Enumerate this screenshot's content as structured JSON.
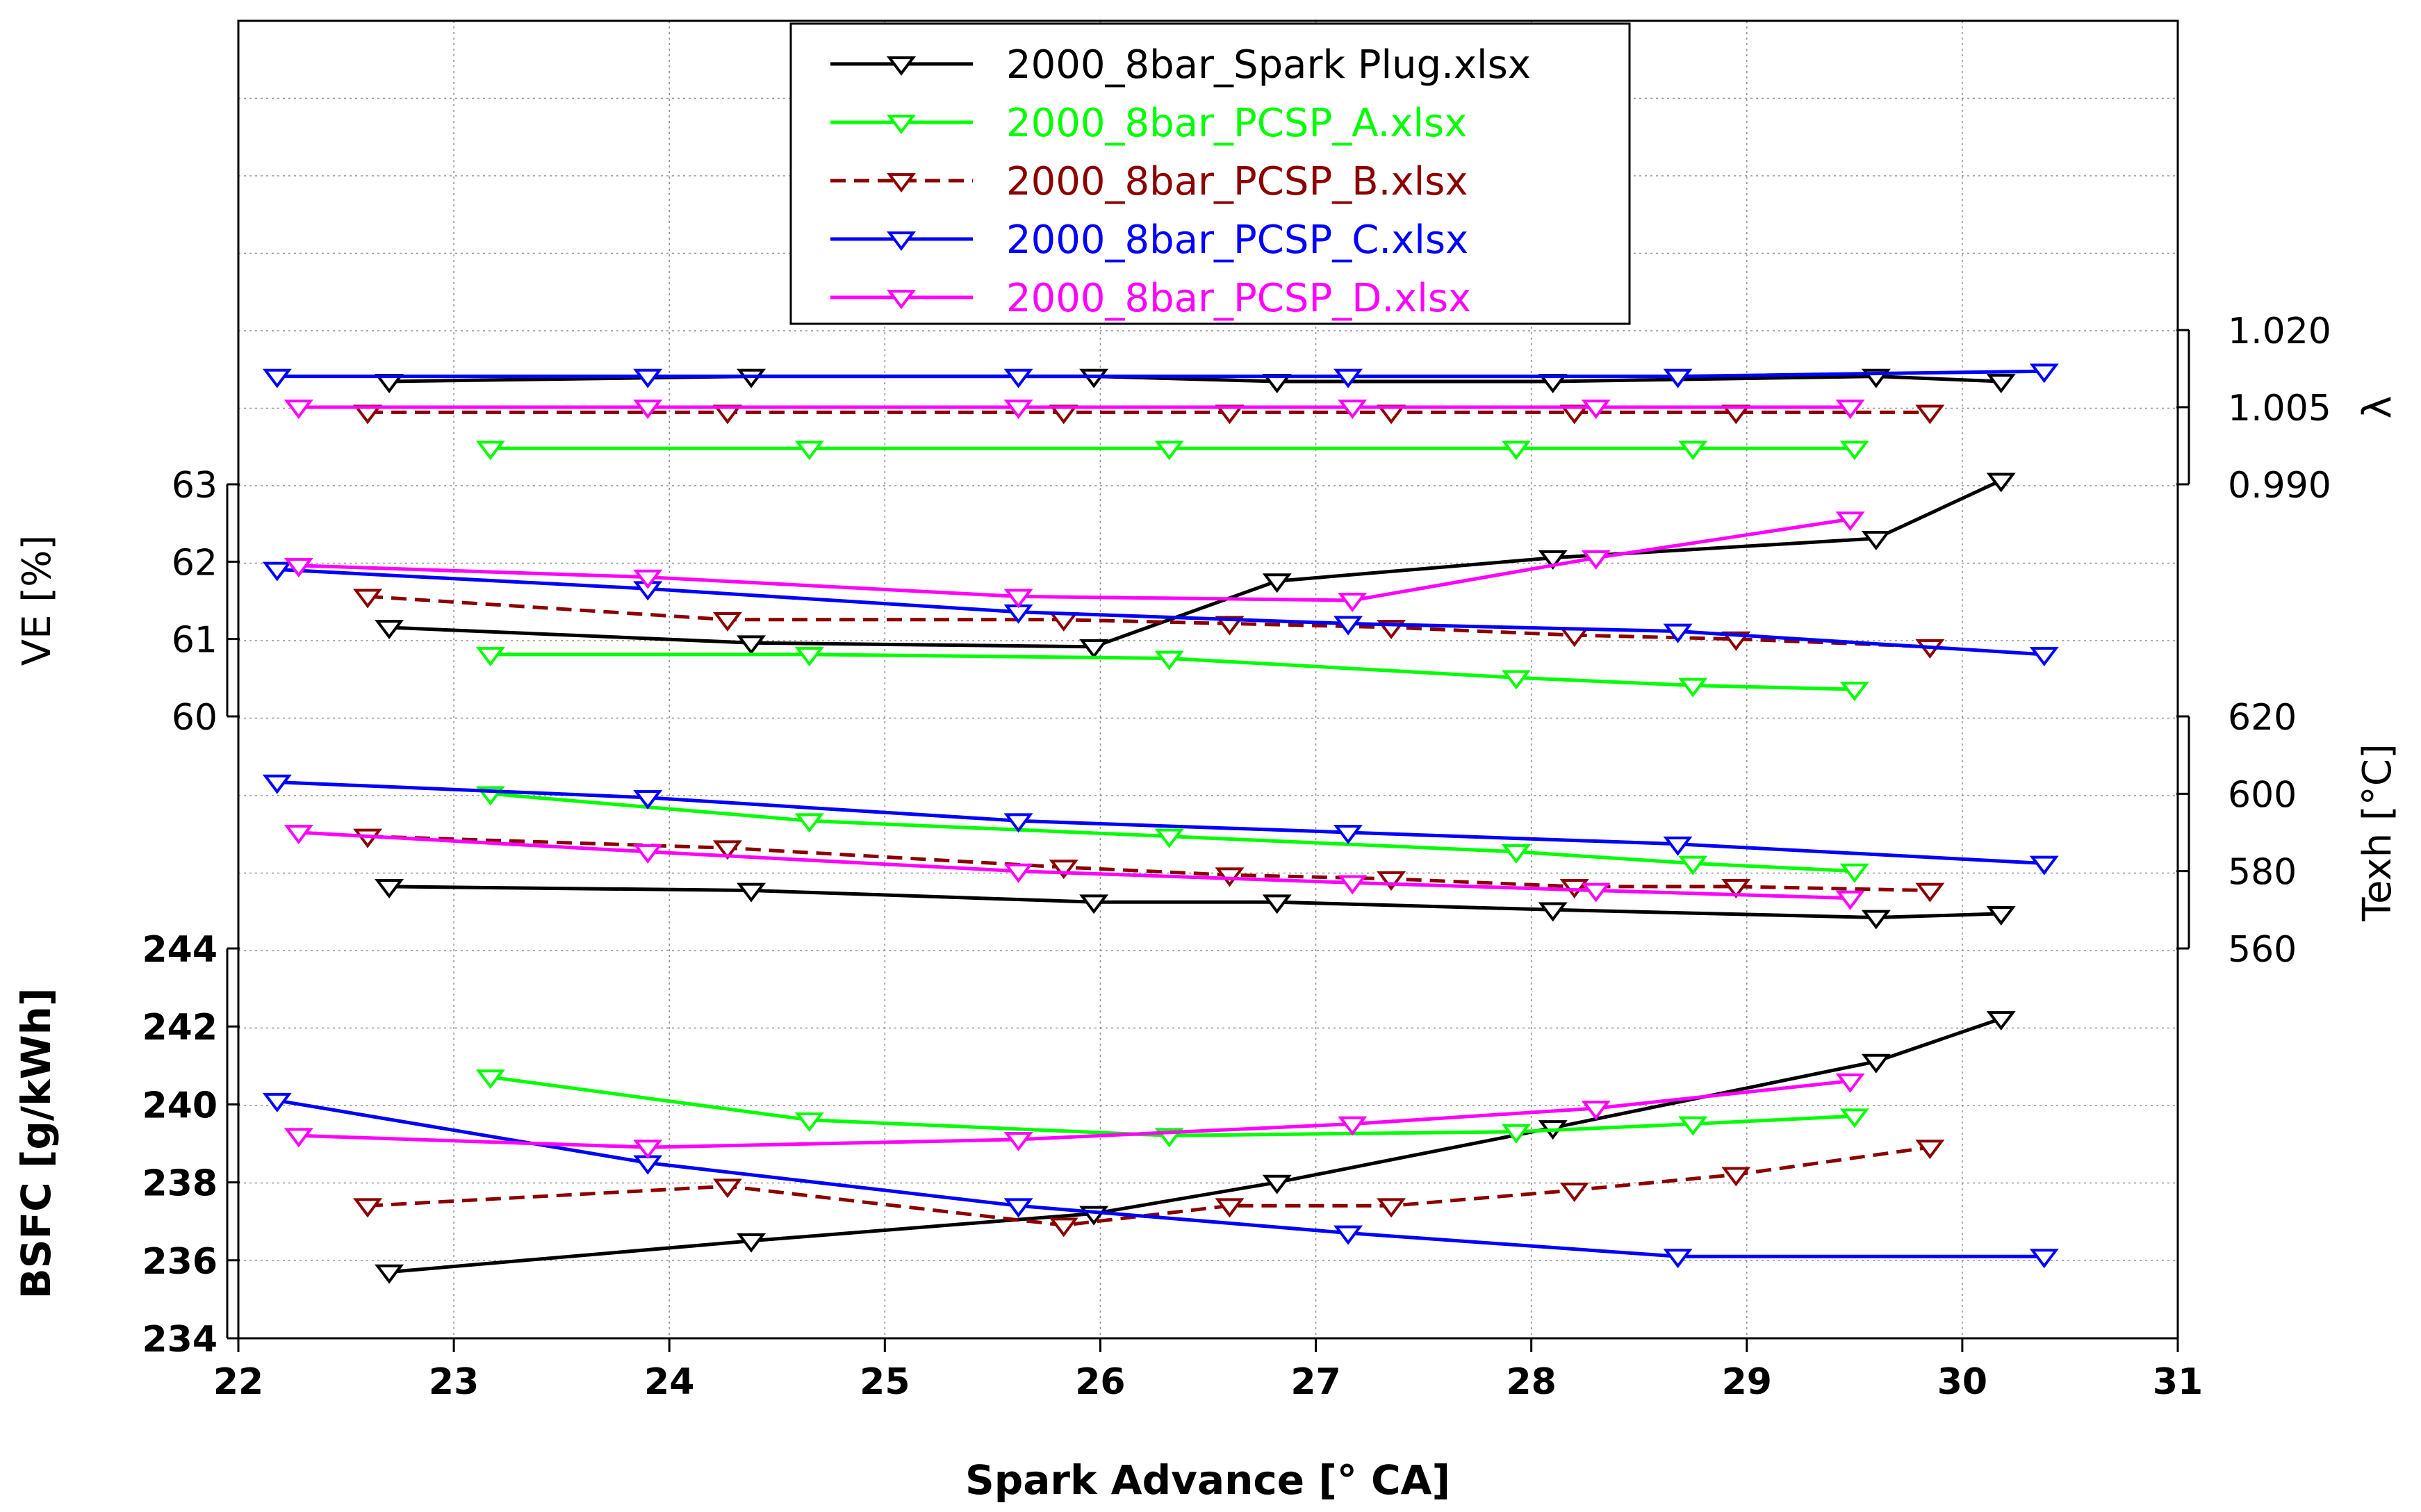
{
  "chart_data": {
    "type": "line",
    "xlabel": "Spark Advance [° CA]",
    "xlim": [
      22,
      31
    ],
    "xticks": [
      22,
      23,
      24,
      25,
      26,
      27,
      28,
      29,
      30,
      31
    ],
    "grid": true,
    "legend_position": "top-center",
    "series": [
      {
        "name": "2000_8bar_Spark Plug.xlsx",
        "color": "#000000",
        "dash": "solid",
        "x": [
          22.7,
          24.38,
          25.97,
          26.82,
          28.1,
          29.6,
          30.18
        ],
        "lambda": [
          1.01,
          1.011,
          1.011,
          1.01,
          1.01,
          1.011,
          1.01
        ],
        "ve": [
          61.15,
          60.95,
          60.9,
          61.75,
          62.05,
          62.3,
          63.05
        ],
        "texh": [
          576,
          575,
          572,
          572,
          570,
          568,
          569
        ],
        "bsfc": [
          235.7,
          236.5,
          237.2,
          238.0,
          239.4,
          241.1,
          242.2
        ]
      },
      {
        "name": "2000_8bar_PCSP_A.xlsx",
        "color": "#00ff00",
        "dash": "solid",
        "x": [
          23.17,
          24.65,
          26.32,
          27.93,
          28.75,
          29.5
        ],
        "lambda": [
          0.997,
          0.997,
          0.997,
          0.997,
          0.997,
          0.997
        ],
        "ve": [
          60.8,
          60.8,
          60.75,
          60.5,
          60.4,
          60.35
        ],
        "texh": [
          600,
          593,
          589,
          585,
          582,
          580
        ],
        "bsfc": [
          240.7,
          239.6,
          239.2,
          239.3,
          239.5,
          239.7
        ]
      },
      {
        "name": "2000_8bar_PCSP_B.xlsx",
        "color": "#8b0000",
        "dash": "dashed",
        "x": [
          22.6,
          24.27,
          25.83,
          26.6,
          27.35,
          28.2,
          28.95,
          29.85
        ],
        "lambda": [
          1.004,
          1.004,
          1.004,
          1.004,
          1.004,
          1.004,
          1.004,
          1.004
        ],
        "ve": [
          61.55,
          61.25,
          61.25,
          61.2,
          61.15,
          61.05,
          61.0,
          60.9
        ],
        "texh": [
          589,
          586,
          581,
          579,
          578,
          576,
          576,
          575
        ],
        "bsfc": [
          237.4,
          237.9,
          236.9,
          237.4,
          237.4,
          237.8,
          238.2,
          238.9
        ]
      },
      {
        "name": "2000_8bar_PCSP_C.xlsx",
        "color": "#0000ff",
        "dash": "solid",
        "x": [
          22.18,
          23.9,
          25.62,
          27.15,
          28.68,
          30.38
        ],
        "lambda": [
          1.011,
          1.011,
          1.011,
          1.011,
          1.011,
          1.012
        ],
        "ve": [
          61.9,
          61.65,
          61.35,
          61.2,
          61.1,
          60.8
        ],
        "texh": [
          603,
          599,
          593,
          590,
          587,
          582
        ],
        "bsfc": [
          240.1,
          238.5,
          237.4,
          236.7,
          236.1,
          236.1
        ]
      },
      {
        "name": "2000_8bar_PCSP_D.xlsx",
        "color": "#ff00ff",
        "dash": "solid",
        "x": [
          22.28,
          23.9,
          25.62,
          27.17,
          28.3,
          29.48
        ],
        "lambda": [
          1.005,
          1.005,
          1.005,
          1.005,
          1.005,
          1.005
        ],
        "ve": [
          61.95,
          61.8,
          61.55,
          61.5,
          62.05,
          62.55
        ],
        "texh": [
          590,
          585,
          580,
          577,
          575,
          573
        ],
        "bsfc": [
          239.2,
          238.9,
          239.1,
          239.5,
          239.9,
          240.6
        ]
      }
    ],
    "panels": {
      "lambda": {
        "ylabel": "λ",
        "side": "right",
        "ylim": [
          0.99,
          1.02
        ],
        "ticks": [
          "0.990",
          "1.005",
          "1.020"
        ]
      },
      "ve": {
        "ylabel": "VE [%]",
        "side": "left",
        "ylim": [
          60,
          63
        ],
        "ticks": [
          "60",
          "61",
          "62",
          "63"
        ]
      },
      "texh": {
        "ylabel": "Texh [°C]",
        "side": "right",
        "ylim": [
          560,
          620
        ],
        "ticks": [
          "560",
          "580",
          "600",
          "620"
        ]
      },
      "bsfc": {
        "ylabel": "BSFC [g/kWh]",
        "side": "left",
        "ylim": [
          234,
          244
        ],
        "ticks": [
          "234",
          "236",
          "238",
          "240",
          "242",
          "244"
        ]
      }
    }
  }
}
